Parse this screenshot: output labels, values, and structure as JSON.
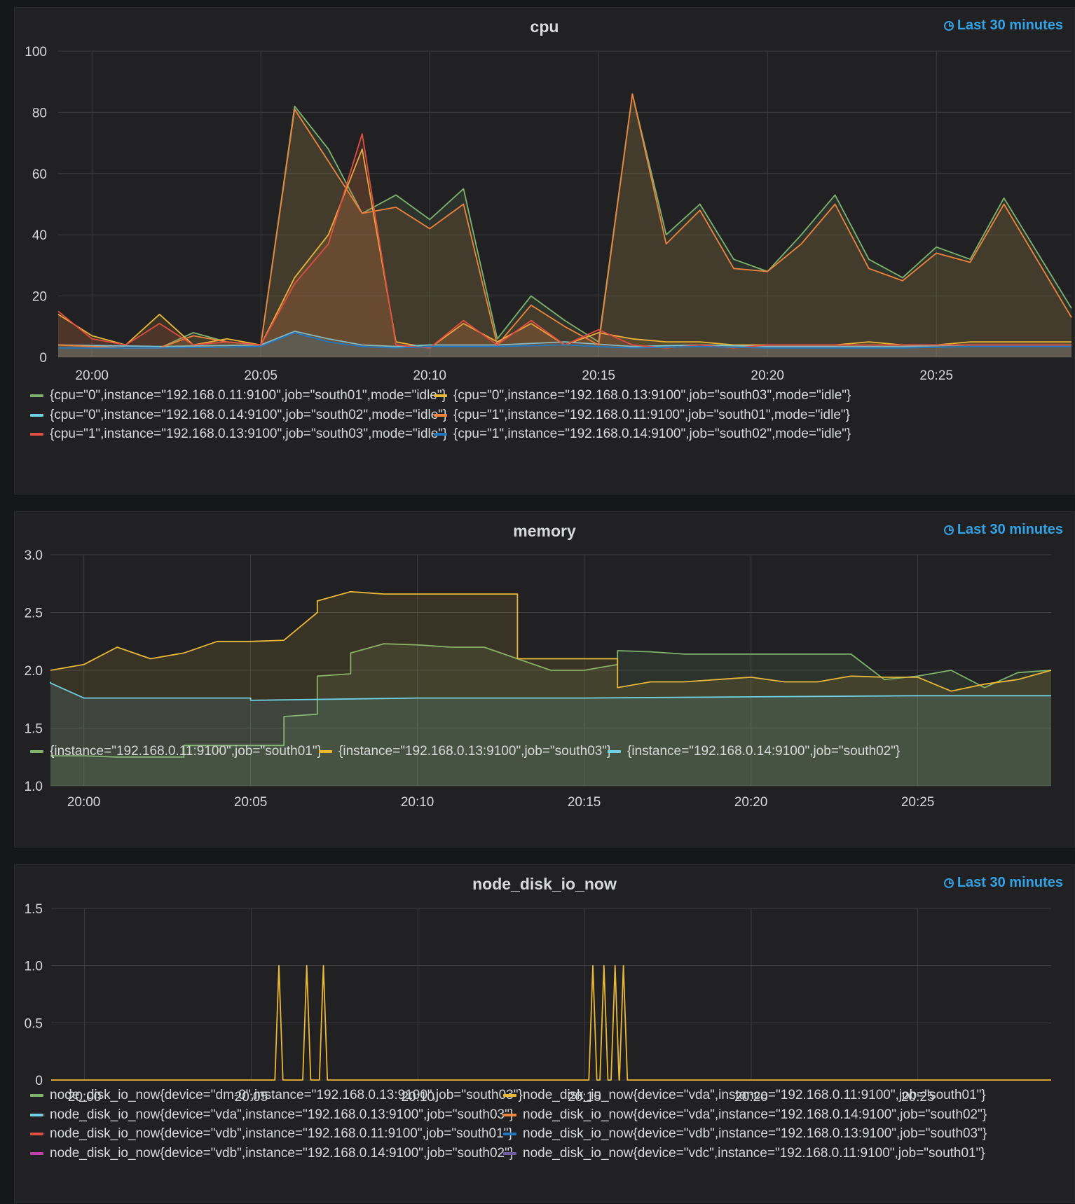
{
  "colors": {
    "green": "#7eb26d",
    "yellow": "#eab839",
    "cyan": "#6ed0e0",
    "orange": "#ef843c",
    "red": "#e24d42",
    "blue": "#1f78c1",
    "purple": "#ba43a9",
    "violet": "#705da0",
    "accent": "#33a2e5"
  },
  "panels": [
    {
      "id": "cpu",
      "title": "cpu",
      "time_range": "Last 30 minutes",
      "legend": [
        {
          "label": "{cpu=\"0\",instance=\"192.168.0.11:9100\",job=\"south01\",mode=\"idle\"}",
          "color": "#7eb26d"
        },
        {
          "label": "{cpu=\"0\",instance=\"192.168.0.13:9100\",job=\"south03\",mode=\"idle\"}",
          "color": "#eab839"
        },
        {
          "label": "{cpu=\"0\",instance=\"192.168.0.14:9100\",job=\"south02\",mode=\"idle\"}",
          "color": "#6ed0e0"
        },
        {
          "label": "{cpu=\"1\",instance=\"192.168.0.11:9100\",job=\"south01\",mode=\"idle\"}",
          "color": "#ef843c"
        },
        {
          "label": "{cpu=\"1\",instance=\"192.168.0.13:9100\",job=\"south03\",mode=\"idle\"}",
          "color": "#e24d42"
        },
        {
          "label": "{cpu=\"1\",instance=\"192.168.0.14:9100\",job=\"south02\",mode=\"idle\"}",
          "color": "#1f78c1"
        }
      ]
    },
    {
      "id": "memory",
      "title": "memory",
      "time_range": "Last 30 minutes",
      "legend": [
        {
          "label": "{instance=\"192.168.0.11:9100\",job=\"south01\"}",
          "color": "#7eb26d"
        },
        {
          "label": "{instance=\"192.168.0.13:9100\",job=\"south03\"}",
          "color": "#eab839"
        },
        {
          "label": "{instance=\"192.168.0.14:9100\",job=\"south02\"}",
          "color": "#6ed0e0"
        }
      ]
    },
    {
      "id": "disk",
      "title": "node_disk_io_now",
      "time_range": "Last 30 minutes",
      "legend": [
        {
          "label": "node_disk_io_now{device=\"dm-0\",instance=\"192.168.0.13:9100\",job=\"south03\"}",
          "color": "#7eb26d"
        },
        {
          "label": "node_disk_io_now{device=\"vda\",instance=\"192.168.0.11:9100\",job=\"south01\"}",
          "color": "#eab839"
        },
        {
          "label": "node_disk_io_now{device=\"vda\",instance=\"192.168.0.13:9100\",job=\"south03\"}",
          "color": "#6ed0e0"
        },
        {
          "label": "node_disk_io_now{device=\"vda\",instance=\"192.168.0.14:9100\",job=\"south02\"}",
          "color": "#ef843c"
        },
        {
          "label": "node_disk_io_now{device=\"vdb\",instance=\"192.168.0.11:9100\",job=\"south01\"}",
          "color": "#e24d42"
        },
        {
          "label": "node_disk_io_now{device=\"vdb\",instance=\"192.168.0.13:9100\",job=\"south03\"}",
          "color": "#1f78c1"
        },
        {
          "label": "node_disk_io_now{device=\"vdb\",instance=\"192.168.0.14:9100\",job=\"south02\"}",
          "color": "#ba43a9"
        },
        {
          "label": "node_disk_io_now{device=\"vdc\",instance=\"192.168.0.11:9100\",job=\"south01\"}",
          "color": "#705da0"
        }
      ]
    }
  ],
  "chart_data": [
    {
      "type": "area",
      "title": "cpu",
      "x_ticks": [
        "20:00",
        "20:05",
        "20:10",
        "20:15",
        "20:20",
        "20:25"
      ],
      "ylim": [
        0,
        100
      ],
      "y_ticks": [
        0,
        20,
        40,
        60,
        80,
        100
      ],
      "grid": true,
      "legend_position": "bottom",
      "xlim": [
        "19:59",
        "20:29"
      ],
      "series": [
        {
          "name": "{cpu=\"0\",instance=\"192.168.0.11:9100\",job=\"south01\",mode=\"idle\"}",
          "color": "#7eb26d",
          "x": [
            "19:59",
            "20:00",
            "20:01",
            "20:02",
            "20:03",
            "20:04",
            "20:05",
            "20:06",
            "20:07",
            "20:08",
            "20:09",
            "20:10",
            "20:11",
            "20:12",
            "20:13",
            "20:14",
            "20:15",
            "20:16",
            "20:17",
            "20:18",
            "20:19",
            "20:20",
            "20:21",
            "20:22",
            "20:23",
            "20:24",
            "20:25",
            "20:26",
            "20:27",
            "20:29"
          ],
          "y": [
            4,
            3.5,
            3,
            3,
            8,
            5,
            4,
            82,
            68,
            47,
            53,
            45,
            55,
            6,
            20,
            12,
            5,
            86,
            40,
            50,
            32,
            28,
            40,
            53,
            32,
            26,
            36,
            32,
            52,
            16
          ]
        },
        {
          "name": "{cpu=\"0\",instance=\"192.168.0.13:9100\",job=\"south03\",mode=\"idle\"}",
          "color": "#eab839",
          "x": [
            "19:59",
            "20:00",
            "20:01",
            "20:02",
            "20:03",
            "20:04",
            "20:05",
            "20:06",
            "20:07",
            "20:08",
            "20:09",
            "20:10",
            "20:11",
            "20:12",
            "20:13",
            "20:14",
            "20:15",
            "20:16",
            "20:17",
            "20:18",
            "20:19",
            "20:20",
            "20:21",
            "20:22",
            "20:23",
            "20:24",
            "20:25",
            "20:26",
            "20:27",
            "20:29"
          ],
          "y": [
            14,
            7,
            4,
            14,
            4,
            6,
            4,
            26,
            40,
            68,
            5,
            3,
            11,
            5,
            11,
            4,
            8,
            6,
            5,
            5,
            4,
            4,
            4,
            4,
            5,
            4,
            4,
            5,
            5,
            5
          ]
        },
        {
          "name": "{cpu=\"0\",instance=\"192.168.0.14:9100\",job=\"south02\",mode=\"idle\"}",
          "color": "#6ed0e0",
          "x": [
            "19:59",
            "20:02",
            "20:05",
            "20:06",
            "20:07",
            "20:08",
            "20:09",
            "20:10",
            "20:12",
            "20:14",
            "20:16",
            "20:18",
            "20:20",
            "20:22",
            "20:24",
            "20:26",
            "20:29"
          ],
          "y": [
            4,
            3.5,
            4,
            8.5,
            6,
            4,
            3.5,
            4,
            4,
            5,
            3.5,
            4,
            3.5,
            3.5,
            3.5,
            4,
            4
          ]
        },
        {
          "name": "{cpu=\"1\",instance=\"192.168.0.11:9100\",job=\"south01\",mode=\"idle\"}",
          "color": "#ef843c",
          "x": [
            "19:59",
            "20:00",
            "20:01",
            "20:02",
            "20:03",
            "20:04",
            "20:05",
            "20:06",
            "20:07",
            "20:08",
            "20:09",
            "20:10",
            "20:11",
            "20:12",
            "20:13",
            "20:14",
            "20:15",
            "20:16",
            "20:17",
            "20:18",
            "20:19",
            "20:20",
            "20:21",
            "20:22",
            "20:23",
            "20:24",
            "20:25",
            "20:26",
            "20:27",
            "20:29"
          ],
          "y": [
            4,
            3.5,
            3,
            3,
            7,
            5,
            4,
            81,
            64,
            47,
            49,
            42,
            50,
            4,
            17,
            10,
            4,
            86,
            37,
            48,
            29,
            28,
            37,
            50,
            29,
            25,
            34,
            31,
            50,
            13
          ]
        },
        {
          "name": "{cpu=\"1\",instance=\"192.168.0.13:9100\",job=\"south03\",mode=\"idle\"}",
          "color": "#e24d42",
          "x": [
            "19:59",
            "20:00",
            "20:01",
            "20:02",
            "20:03",
            "20:04",
            "20:05",
            "20:06",
            "20:07",
            "20:08",
            "20:09",
            "20:10",
            "20:11",
            "20:12",
            "20:13",
            "20:14",
            "20:15",
            "20:16",
            "20:17",
            "20:18",
            "20:19",
            "20:20",
            "20:21",
            "20:22",
            "20:23",
            "20:24",
            "20:25",
            "20:26",
            "20:27",
            "20:29"
          ],
          "y": [
            15,
            6,
            4,
            11,
            4,
            5,
            4,
            24,
            37,
            73,
            4,
            3,
            12,
            4,
            12,
            4,
            9,
            4,
            3,
            4,
            3,
            4,
            4,
            4,
            4,
            4,
            4,
            4,
            4,
            4
          ]
        },
        {
          "name": "{cpu=\"1\",instance=\"192.168.0.14:9100\",job=\"south02\",mode=\"idle\"}",
          "color": "#1f78c1",
          "x": [
            "19:59",
            "20:02",
            "20:05",
            "20:06",
            "20:07",
            "20:08",
            "20:09",
            "20:10",
            "20:12",
            "20:14",
            "20:16",
            "20:18",
            "20:20",
            "20:22",
            "20:24",
            "20:26",
            "20:29"
          ],
          "y": [
            3,
            3,
            3.5,
            8,
            5,
            3.5,
            3,
            3.5,
            3.5,
            4,
            3,
            3.5,
            3,
            3,
            3,
            3.5,
            3.5
          ]
        }
      ]
    },
    {
      "type": "area",
      "title": "memory",
      "x_ticks": [
        "20:00",
        "20:05",
        "20:10",
        "20:15",
        "20:20",
        "20:25"
      ],
      "ylim": [
        1.0,
        3.0
      ],
      "y_ticks": [
        "1.0",
        "1.5",
        "2.0",
        "2.5",
        "3.0"
      ],
      "grid": true,
      "legend_position": "bottom",
      "xlim": [
        "19:59",
        "20:29"
      ],
      "series": [
        {
          "name": "{instance=\"192.168.0.11:9100\",job=\"south01\"}",
          "color": "#7eb26d",
          "x": [
            "19:59",
            "20:00",
            "20:01",
            "20:02",
            "20:03",
            "20:03",
            "20:05",
            "20:06",
            "20:06",
            "20:07",
            "20:07",
            "20:08",
            "20:08",
            "20:09",
            "20:10",
            "20:11",
            "20:12",
            "20:13",
            "20:14",
            "20:15",
            "20:16",
            "20:16",
            "20:17",
            "20:18",
            "20:20",
            "20:22",
            "20:23",
            "20:24",
            "20:25",
            "20:26",
            "20:27",
            "20:28",
            "20:29"
          ],
          "y": [
            1.26,
            1.26,
            1.25,
            1.25,
            1.25,
            1.35,
            1.35,
            1.35,
            1.6,
            1.62,
            1.95,
            1.97,
            2.15,
            2.23,
            2.22,
            2.2,
            2.2,
            2.1,
            2.0,
            2.0,
            2.05,
            2.17,
            2.16,
            2.14,
            2.14,
            2.14,
            2.14,
            1.92,
            1.95,
            2.0,
            1.85,
            1.98,
            2.0
          ]
        },
        {
          "name": "{instance=\"192.168.0.13:9100\",job=\"south03\"}",
          "color": "#eab839",
          "x": [
            "19:59",
            "20:00",
            "20:01",
            "20:02",
            "20:03",
            "20:04",
            "20:05",
            "20:06",
            "20:07",
            "20:07",
            "20:08",
            "20:09",
            "20:10",
            "20:11",
            "20:12",
            "20:13",
            "20:13",
            "20:14",
            "20:15",
            "20:16",
            "20:16",
            "20:17",
            "20:18",
            "20:19",
            "20:20",
            "20:21",
            "20:22",
            "20:23",
            "20:24",
            "20:25",
            "20:26",
            "20:27",
            "20:28",
            "20:29"
          ],
          "y": [
            2.0,
            2.05,
            2.2,
            2.1,
            2.15,
            2.25,
            2.25,
            2.26,
            2.5,
            2.6,
            2.68,
            2.66,
            2.66,
            2.66,
            2.66,
            2.66,
            2.1,
            2.1,
            2.1,
            2.1,
            1.85,
            1.9,
            1.9,
            1.92,
            1.94,
            1.9,
            1.9,
            1.95,
            1.94,
            1.94,
            1.82,
            1.88,
            1.92,
            2.0
          ]
        },
        {
          "name": "{instance=\"192.168.0.14:9100\",job=\"south02\"}",
          "color": "#6ed0e0",
          "x": [
            "19:59",
            "19:59",
            "20:00",
            "20:05",
            "20:05",
            "20:10",
            "20:15",
            "20:20",
            "20:25",
            "20:29"
          ],
          "y": [
            1.9,
            1.89,
            1.76,
            1.76,
            1.74,
            1.76,
            1.76,
            1.77,
            1.78,
            1.78
          ]
        }
      ]
    },
    {
      "type": "line",
      "title": "node_disk_io_now",
      "x_ticks": [
        "20:00",
        "20:05",
        "20:10",
        "20:15",
        "20:20",
        "20:25"
      ],
      "ylim": [
        0,
        1.5
      ],
      "y_ticks": [
        "0",
        "0.5",
        "1.0",
        "1.5"
      ],
      "grid": true,
      "legend_position": "bottom",
      "xlim": [
        "19:59",
        "20:29"
      ],
      "series": [
        {
          "name": "node_disk_io_now{device=\"vda\",instance=\"192.168.0.11:9100\",job=\"south01\"}",
          "color": "#eab839",
          "spikes_at": [
            "20:05:50",
            "20:06:40",
            "20:07:10",
            "20:15:15",
            "20:15:35",
            "20:15:55",
            "20:16:10"
          ],
          "spike_value": 1.0,
          "baseline": 0
        }
      ]
    }
  ]
}
